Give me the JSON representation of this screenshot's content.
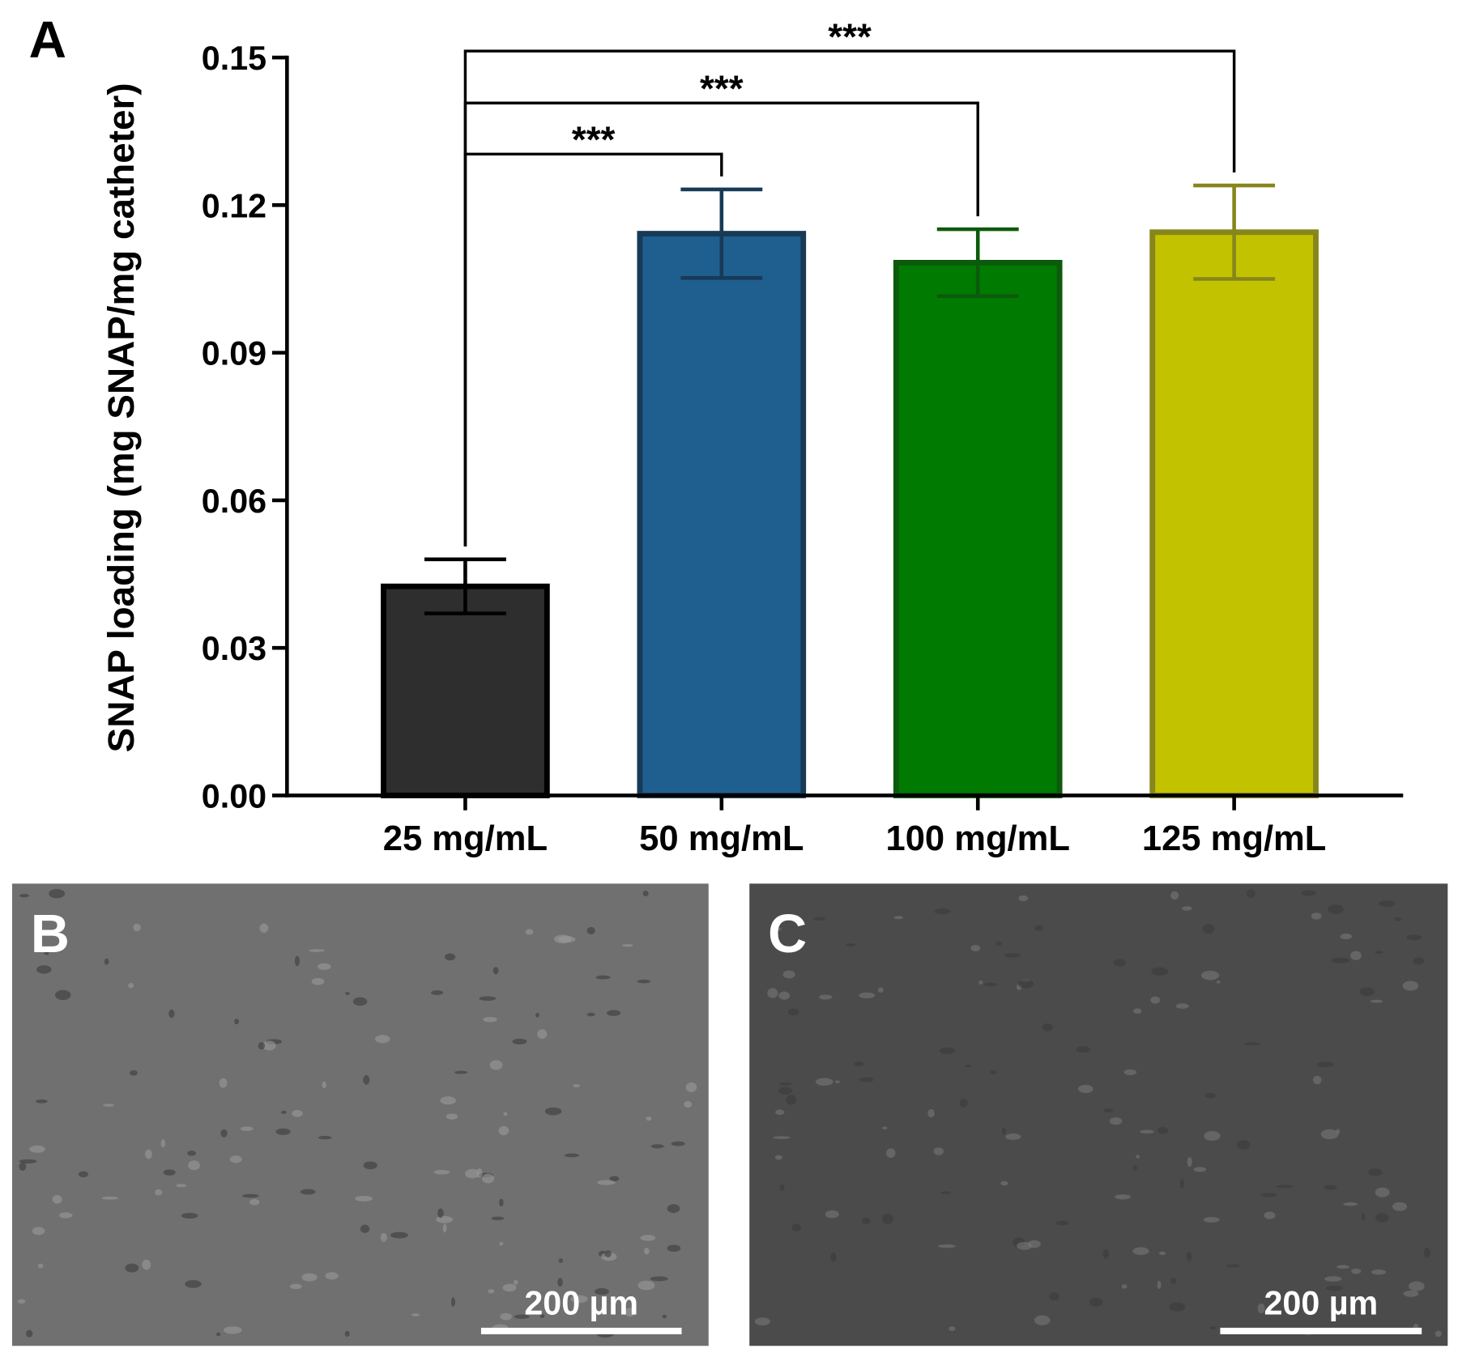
{
  "chart_data": {
    "type": "bar",
    "panel_label": "A",
    "y_label": "SNAP loading (mg SNAP/mg catheter)",
    "categories": [
      "25 mg/mL",
      "50 mg/mL",
      "100 mg/mL",
      "125 mg/mL"
    ],
    "values": [
      0.0425,
      0.1142,
      0.1083,
      0.1145
    ],
    "errors": [
      0.0055,
      0.009,
      0.0068,
      0.0095
    ],
    "colors": [
      "#2e2e2e",
      "#1f5f8f",
      "#007a00",
      "#c2c200"
    ],
    "edge_colors": [
      "#000000",
      "#173a57",
      "#0c5a0c",
      "#86861c"
    ],
    "ylim": [
      0,
      0.15
    ],
    "yticks": [
      {
        "value": 0,
        "label": "0.00"
      },
      0.03,
      0.06,
      0.09,
      0.12,
      0.15
    ],
    "significance": [
      {
        "between": [
          "25 mg/mL",
          "50 mg/mL"
        ],
        "label": "***"
      },
      {
        "between": [
          "25 mg/mL",
          "100 mg/mL"
        ],
        "label": "***"
      },
      {
        "between": [
          "25 mg/mL",
          "125 mg/mL"
        ],
        "label": "***"
      }
    ]
  },
  "panels": [
    {
      "label": "B",
      "scale_bar": "200 µm"
    },
    {
      "label": "C",
      "scale_bar": "200 µm"
    }
  ]
}
